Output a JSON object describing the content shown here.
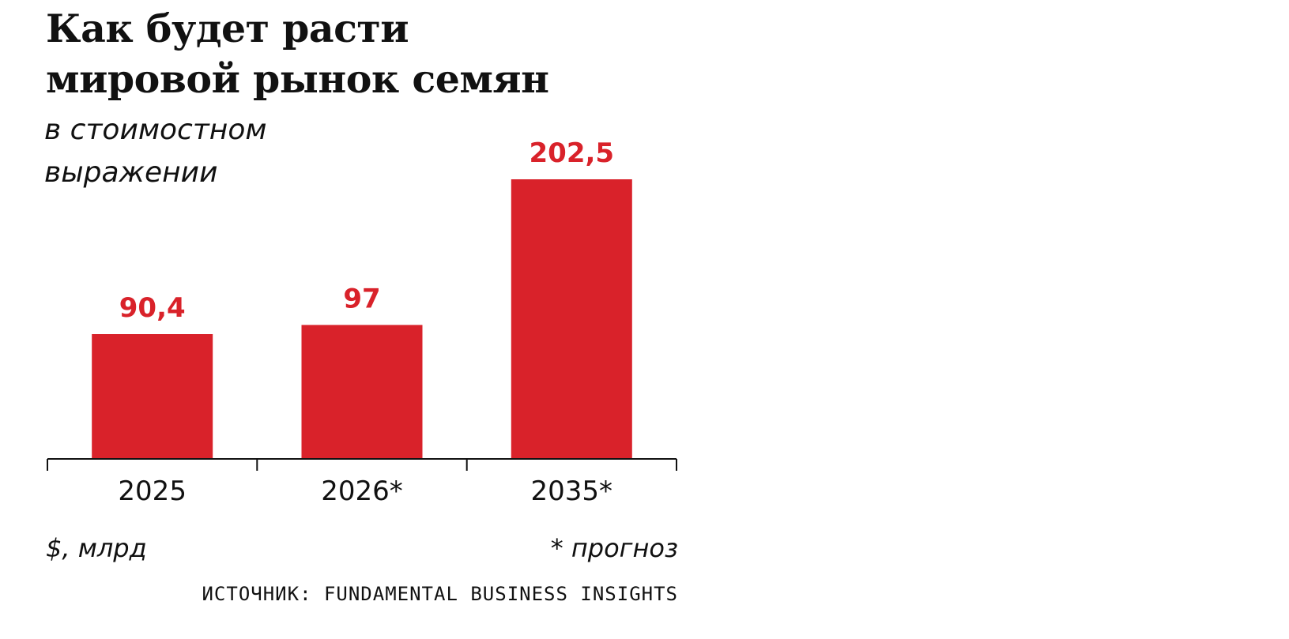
{
  "title_lines": [
    "Как будет расти",
    "мировой рынок семян"
  ],
  "subtitle_lines": [
    "в стоимостном",
    "выражении"
  ],
  "unit_label": "$, млрд",
  "forecast_note": "* прогноз",
  "source": "ИСТОЧНИК: FUNDAMENTAL BUSINESS INSIGHTS",
  "colors": {
    "bar": "#d9222a",
    "value_label": "#d9222a",
    "axis": "#111111",
    "text": "#111111"
  },
  "chart_data": {
    "type": "bar",
    "categories": [
      "2025",
      "2026*",
      "2035*"
    ],
    "values": [
      90.4,
      97,
      202.5
    ],
    "value_labels": [
      "90,4",
      "97",
      "202,5"
    ],
    "title": "Как будет расти мировой рынок семян",
    "subtitle": "в стоимостном выражении",
    "ylabel": "$, млрд",
    "xlabel": "",
    "ylim": [
      0,
      202.5
    ],
    "grid": false,
    "legend": "none"
  }
}
